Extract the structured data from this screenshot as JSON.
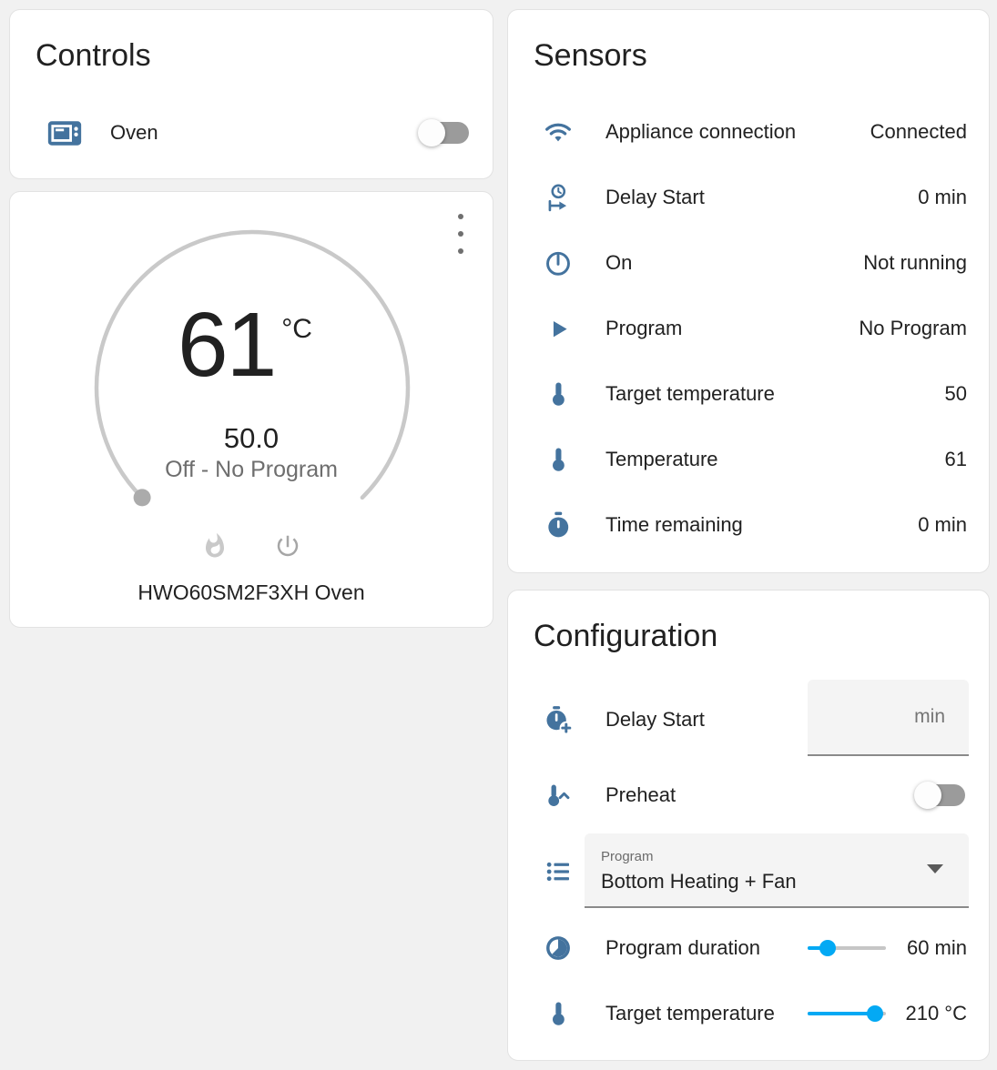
{
  "colors": {
    "icon_blue": "#44739e",
    "slider_blue": "#03a9f4",
    "dial_gray": "#c9c9c9",
    "page_background": "#f1f1f1"
  },
  "controls": {
    "title": "Controls",
    "oven": {
      "label": "Oven",
      "state": "off"
    }
  },
  "climate": {
    "current_temp": "61",
    "unit": "°C",
    "target_temp": "50.0",
    "status": "Off - No Program",
    "device_name": "HWO60SM2F3XH Oven",
    "dial_percent": 0
  },
  "sensors": {
    "title": "Sensors",
    "rows": [
      {
        "icon": "wifi-icon",
        "label": "Appliance connection",
        "value": "Connected"
      },
      {
        "icon": "delay-start-icon",
        "label": "Delay Start",
        "value": "0 min"
      },
      {
        "icon": "power-standby-icon",
        "label": "On",
        "value": "Not running"
      },
      {
        "icon": "play-icon",
        "label": "Program",
        "value": "No Program"
      },
      {
        "icon": "thermometer-icon",
        "label": "Target temperature",
        "value": "50"
      },
      {
        "icon": "thermometer-icon",
        "label": "Temperature",
        "value": "61"
      },
      {
        "icon": "timer-icon",
        "label": "Time remaining",
        "value": "0 min"
      }
    ]
  },
  "config": {
    "title": "Configuration",
    "delay_start": {
      "label": "Delay Start",
      "input_value": "",
      "input_suffix": "min"
    },
    "preheat": {
      "label": "Preheat",
      "state": "off"
    },
    "program": {
      "field_label": "Program",
      "value": "Bottom Heating + Fan"
    },
    "program_duration": {
      "label": "Program duration",
      "value": "60 min",
      "slider_percent": 26
    },
    "target_temperature": {
      "label": "Target temperature",
      "value": "210 °C",
      "slider_percent": 86
    }
  }
}
